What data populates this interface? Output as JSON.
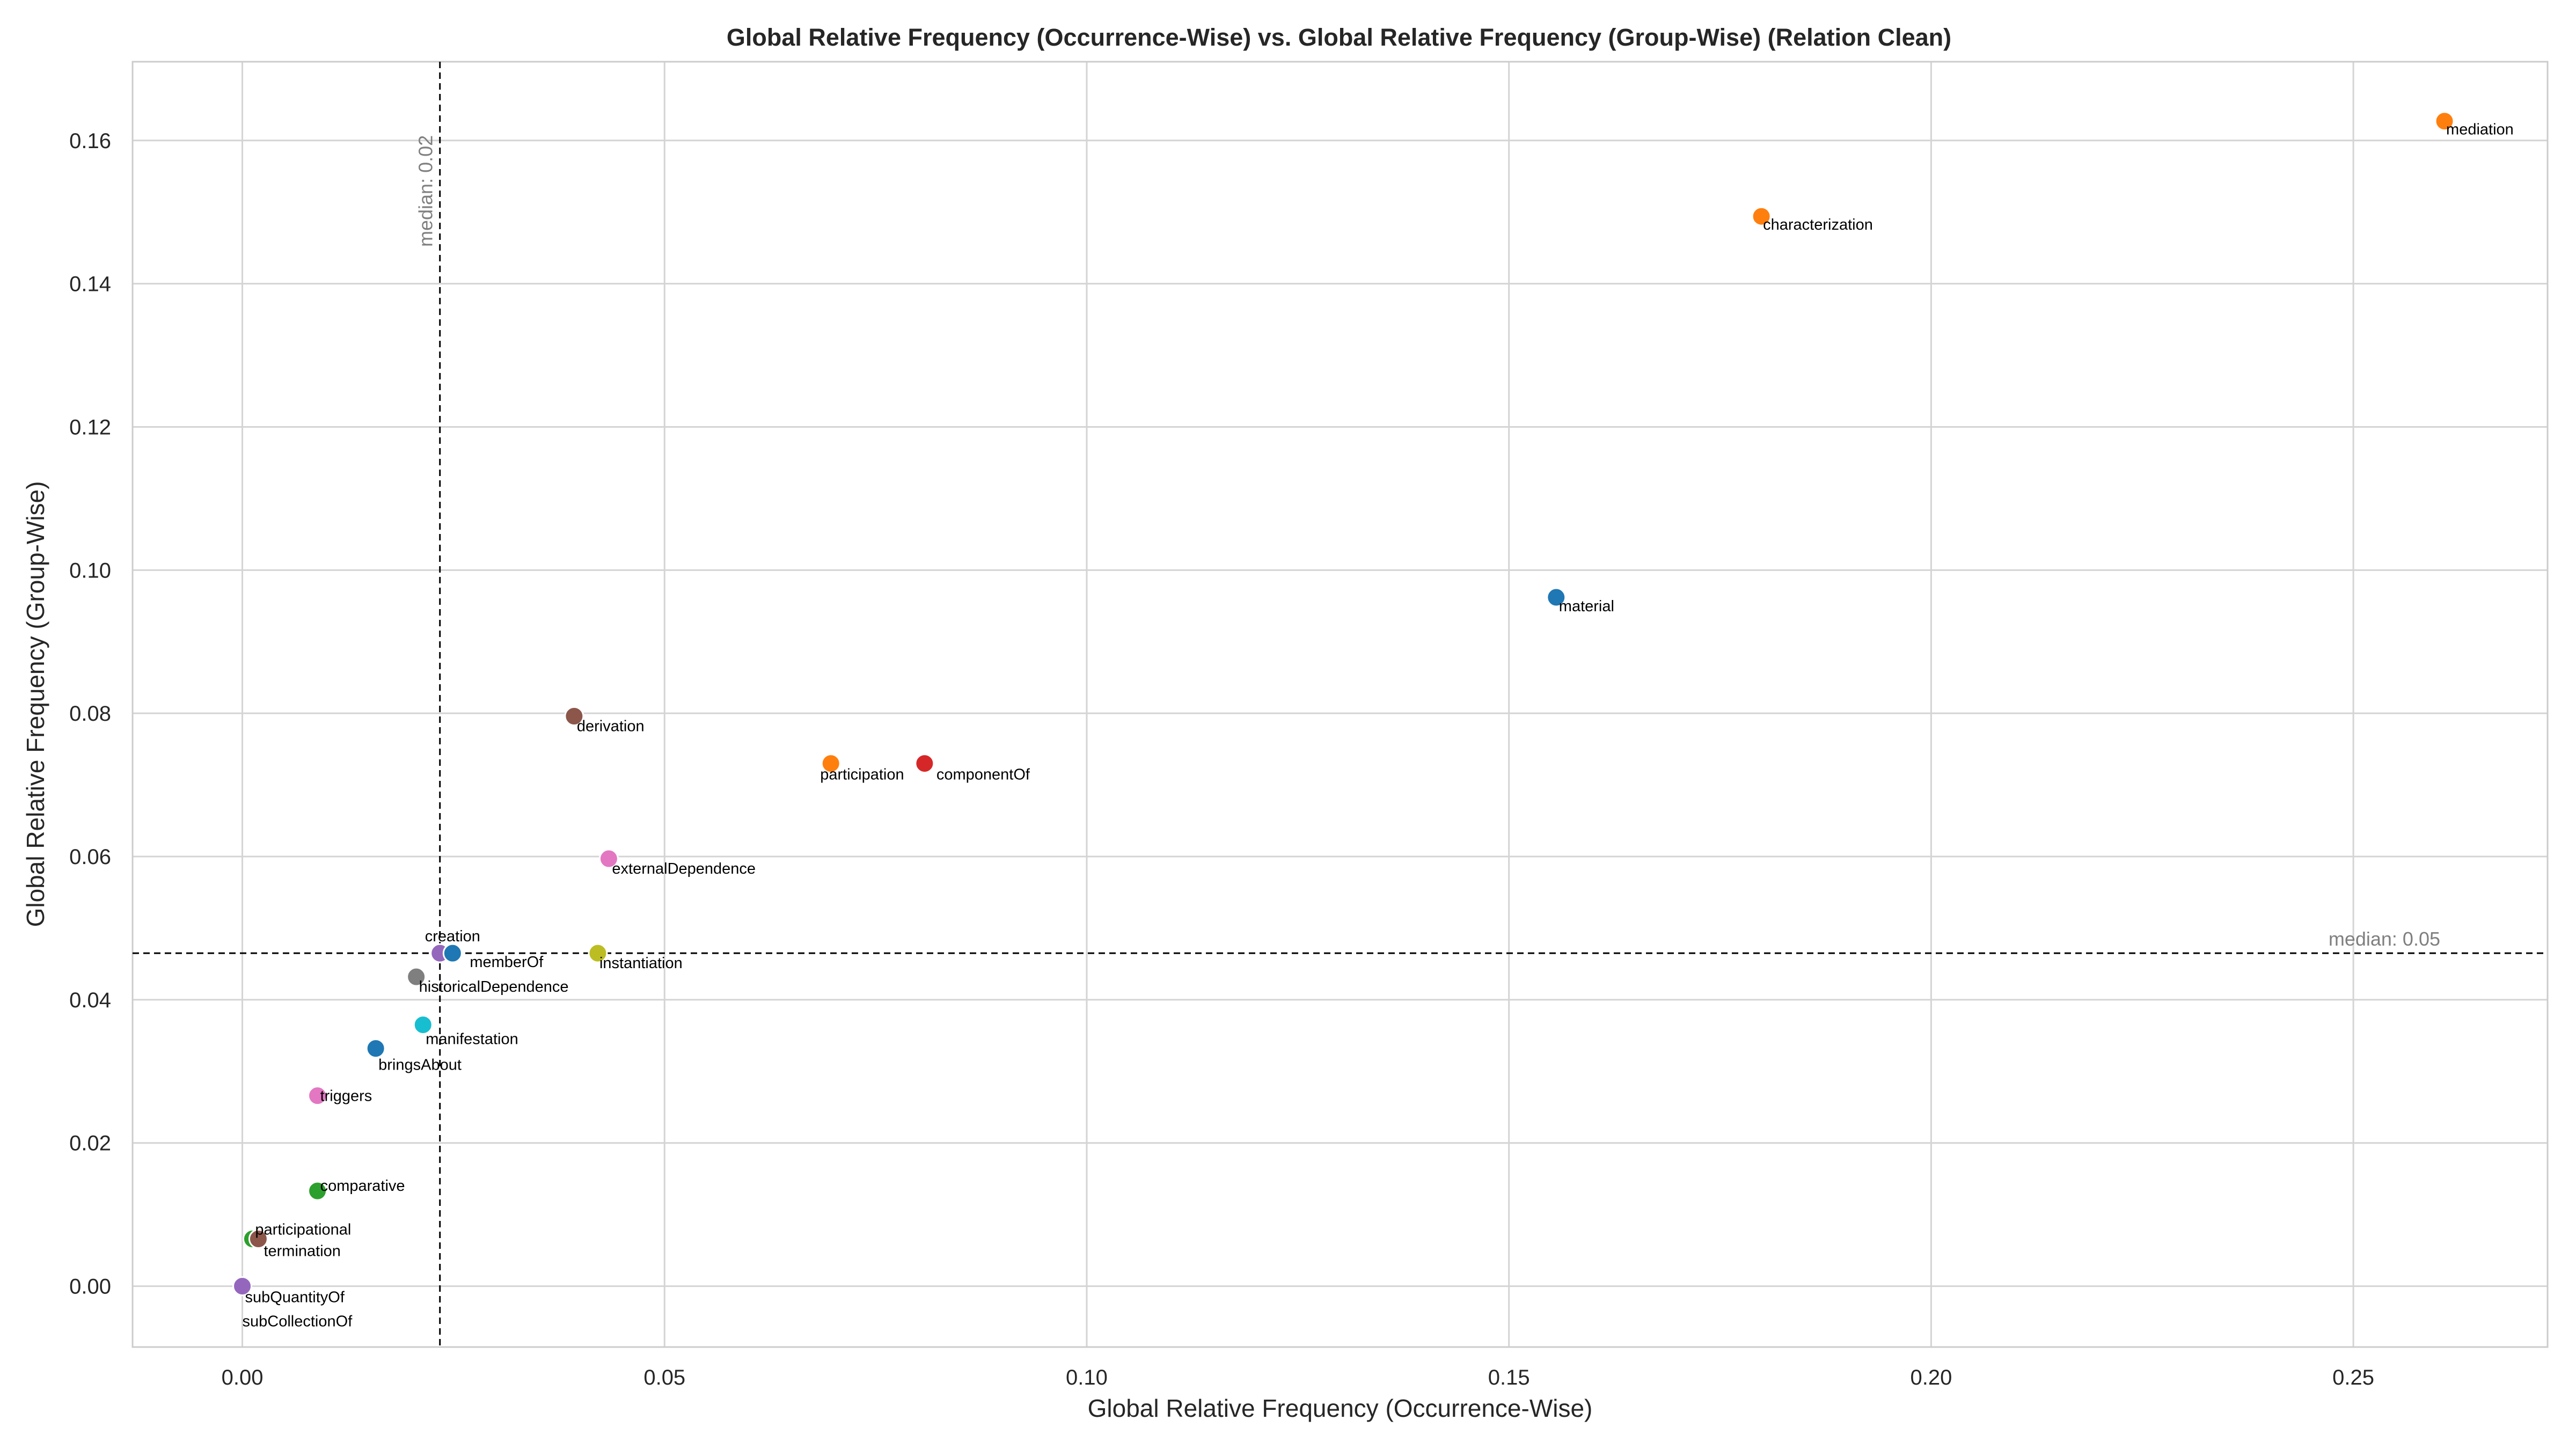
{
  "chart_data": {
    "type": "scatter",
    "title": "Global Relative Frequency (Occurrence-Wise) vs. Global Relative Frequency (Group-Wise) (Relation Clean)",
    "xlabel": "Global Relative Frequency (Occurrence-Wise)",
    "ylabel": "Global Relative Frequency (Group-Wise)",
    "xlim": [
      -0.013,
      0.273
    ],
    "ylim": [
      -0.0085,
      0.171
    ],
    "xticks": [
      0.0,
      0.05,
      0.1,
      0.15,
      0.2,
      0.25
    ],
    "xtick_labels": [
      "0.00",
      "0.05",
      "0.10",
      "0.15",
      "0.20",
      "0.25"
    ],
    "yticks": [
      0.0,
      0.02,
      0.04,
      0.06,
      0.08,
      0.1,
      0.12,
      0.14,
      0.16
    ],
    "ytick_labels": [
      "0.00",
      "0.02",
      "0.04",
      "0.06",
      "0.08",
      "0.10",
      "0.12",
      "0.14",
      "0.16"
    ],
    "grid": true,
    "medians": {
      "x": 0.0234,
      "x_label": "median: 0.02",
      "y": 0.0465,
      "y_label": "median: 0.05"
    },
    "points": [
      {
        "label": "mediation",
        "x": 0.2608,
        "y": 0.1627,
        "color": "#ff7f0e"
      },
      {
        "label": "characterization",
        "x": 0.1799,
        "y": 0.1494,
        "color": "#ff7f0e"
      },
      {
        "label": "material",
        "x": 0.1556,
        "y": 0.0962,
        "color": "#1f77b4"
      },
      {
        "label": "derivation",
        "x": 0.0393,
        "y": 0.0796,
        "color": "#8c564b"
      },
      {
        "label": "participation",
        "x": 0.0697,
        "y": 0.073,
        "color": "#ff7f0e"
      },
      {
        "label": "componentOf",
        "x": 0.0808,
        "y": 0.073,
        "color": "#d62728"
      },
      {
        "label": "externalDependence",
        "x": 0.0434,
        "y": 0.0597,
        "color": "#e377c2"
      },
      {
        "label": "creation",
        "x": 0.0234,
        "y": 0.0465,
        "color": "#9467bd"
      },
      {
        "label": "memberOf",
        "x": 0.0249,
        "y": 0.0465,
        "color": "#1f77b4"
      },
      {
        "label": "instantiation",
        "x": 0.0421,
        "y": 0.0465,
        "color": "#bcbd22"
      },
      {
        "label": "historicalDependence",
        "x": 0.0206,
        "y": 0.0432,
        "color": "#7f7f7f"
      },
      {
        "label": "manifestation",
        "x": 0.0214,
        "y": 0.0365,
        "color": "#17becf"
      },
      {
        "label": "bringsAbout",
        "x": 0.0158,
        "y": 0.0332,
        "color": "#1f77b4"
      },
      {
        "label": "triggers",
        "x": 0.0089,
        "y": 0.0266,
        "color": "#e377c2"
      },
      {
        "label": "comparative",
        "x": 0.0089,
        "y": 0.0133,
        "color": "#2ca02c"
      },
      {
        "label": "participational",
        "x": 0.0012,
        "y": 0.0066,
        "color": "#2ca02c"
      },
      {
        "label": "termination",
        "x": 0.0019,
        "y": 0.0066,
        "color": "#8c564b"
      },
      {
        "label": "subQuantityOf",
        "x": 0.0,
        "y": 0.0,
        "color": "#9467bd"
      },
      {
        "label": "subCollectionOf",
        "x": 0.0,
        "y": 0.0,
        "color": "#9467bd"
      }
    ]
  }
}
